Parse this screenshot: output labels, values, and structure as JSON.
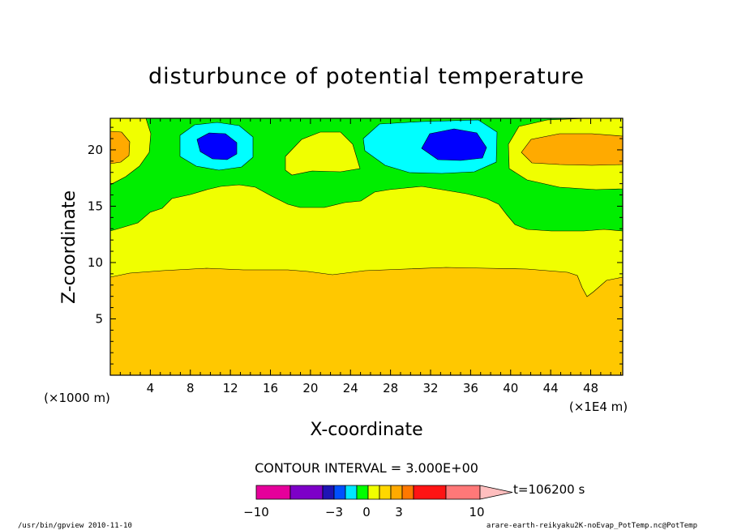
{
  "chart_data": {
    "type": "contour",
    "title": "disturbunce of potential temperature",
    "xlabel": "X-coordinate",
    "ylabel": "Z-coordinate",
    "x_unit": "(×1E4 m)",
    "y_unit": "(×1000 m)",
    "xlim": [
      0,
      51.2
    ],
    "ylim": [
      0,
      22.8
    ],
    "x_ticks": [
      4,
      8,
      12,
      16,
      20,
      24,
      28,
      32,
      36,
      40,
      44,
      48
    ],
    "y_ticks": [
      5,
      10,
      15,
      20
    ],
    "contour_interval": "CONTOUR INTERVAL = 3.000E+00",
    "time_label": "t=106200 s",
    "colorbar": {
      "labels": [
        "−10",
        "−3",
        "0",
        "3",
        "10"
      ],
      "label_values": [
        -10,
        -3,
        0,
        3,
        10
      ],
      "colors": [
        "#e6009b",
        "#7d00c8",
        "#1e14b4",
        "#0050ff",
        "#00e6ff",
        "#00ff00",
        "#f0ff00",
        "#ffd700",
        "#ffaa00",
        "#ff7800",
        "#ff1414",
        "#ff7878",
        "#ffbebe"
      ]
    },
    "bands": {
      "orange": {
        "color": "#ffc800",
        "range": "z < ~9"
      },
      "yellow": {
        "color": "#f0ff00",
        "range": "~9 to ~16"
      },
      "green": {
        "color": "#00ee00",
        "range": "~16 to top"
      }
    },
    "features": [
      {
        "kind": "high",
        "x": 1,
        "z": 20.3,
        "colors": [
          "#f0ff00",
          "#ffaa00"
        ]
      },
      {
        "kind": "low",
        "x": 10.5,
        "z": 20.4,
        "colors": [
          "#00ffff",
          "#0000ff"
        ]
      },
      {
        "kind": "high",
        "x": 20.5,
        "z": 19.5,
        "colors": [
          "#f0ff00"
        ]
      },
      {
        "kind": "low",
        "x": 34.5,
        "z": 20.3,
        "colors": [
          "#00ffff",
          "#0000ff"
        ]
      },
      {
        "kind": "high",
        "x": 47,
        "z": 20.3,
        "colors": [
          "#f0ff00",
          "#ffaa00"
        ]
      }
    ]
  },
  "footer": {
    "left": "/usr/bin/gpview   2010-11-10",
    "right": "arare-earth-reikyaku2K-noEvap_PotTemp.nc@PotTemp"
  }
}
